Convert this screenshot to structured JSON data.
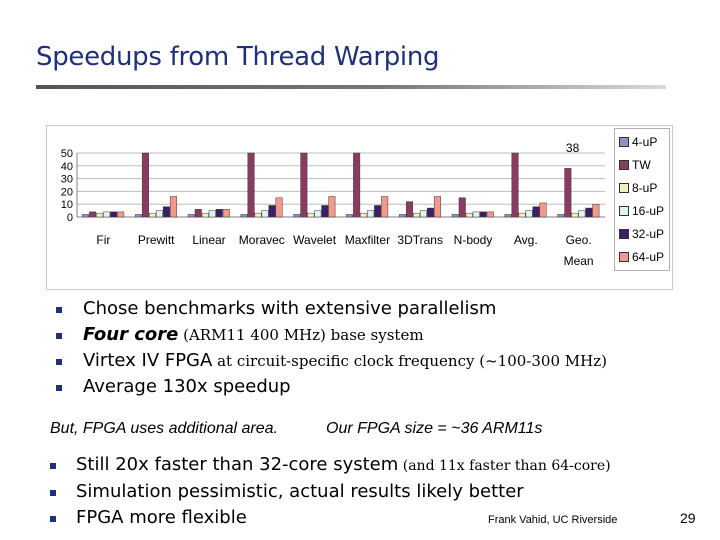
{
  "slide": {
    "title": "Speedups from Thread Warping",
    "bullets": [
      {
        "main": "Chose benchmarks with extensive parallelism",
        "extra": ""
      },
      {
        "main": "Four core",
        "extra": " (ARM11 400 MHz) base system",
        "tail": ""
      },
      {
        "main": "Virtex IV FPGA",
        "extra": " at circuit-specific clock frequency (~100-300 MHz)"
      },
      {
        "main": "Average 130x speedup",
        "extra": ""
      }
    ],
    "note_left": "But, FPGA uses additional area.",
    "note_right": "Our FPGA size = ~36 ARM11s",
    "bullets2": [
      {
        "main": "Still 20x faster than 32-core system",
        "extra": " (and 11x faster than 64-core)"
      },
      {
        "main": "Simulation pessimistic, actual results likely better",
        "extra": ""
      },
      {
        "main": "FPGA more flexible",
        "extra": ""
      }
    ],
    "footer": "Frank Vahid, UC Riverside",
    "page_number": "29"
  },
  "chart_data": {
    "type": "bar",
    "categories": [
      "Fir",
      "Prewitt",
      "Linear",
      "Moravec",
      "Wavelet",
      "Maxfilter",
      "3DTrans",
      "N-body",
      "Avg.",
      "Geo. Mean"
    ],
    "ylim": [
      0,
      50
    ],
    "yticks": [
      0,
      10,
      20,
      30,
      40,
      50
    ],
    "clipped_label": {
      "category": "Geo. Mean",
      "text": "38"
    },
    "legend_position": "right",
    "series": [
      {
        "name": "4-uP",
        "color": "#8c96c6",
        "values": [
          2,
          2,
          2,
          2,
          2,
          2,
          2,
          2,
          2,
          2
        ]
      },
      {
        "name": "TW",
        "color": "#8b3a62",
        "values": [
          4,
          50,
          6,
          50,
          50,
          50,
          12,
          15,
          50,
          38
        ]
      },
      {
        "name": "8-uP",
        "color": "#f4f0c0",
        "values": [
          3,
          3,
          3,
          3,
          3,
          3,
          3,
          3,
          3,
          3
        ]
      },
      {
        "name": "16-uP",
        "color": "#dff1f3",
        "values": [
          4,
          5,
          5,
          5,
          5,
          5,
          5,
          4,
          5,
          5
        ]
      },
      {
        "name": "32-uP",
        "color": "#3b1f66",
        "values": [
          4,
          8,
          6,
          9,
          9,
          9,
          7,
          4,
          8,
          7
        ]
      },
      {
        "name": "64-uP",
        "color": "#f2998b",
        "values": [
          4,
          16,
          6,
          15,
          16,
          16,
          16,
          4,
          11,
          10
        ]
      }
    ]
  }
}
